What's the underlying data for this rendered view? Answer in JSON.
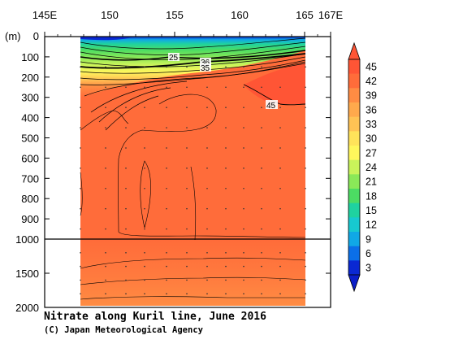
{
  "chart_data": {
    "type": "heatmap",
    "title": "Nitrate along Kuril line, June 2016",
    "credit": "(C) Japan Meteorological Agency",
    "ylabel": "(m)",
    "x_ticks": [
      "145E",
      "150",
      "155",
      "160",
      "165",
      "167E"
    ],
    "x_tick_values": [
      145,
      150,
      155,
      160,
      165,
      167
    ],
    "xlim": [
      145,
      167
    ],
    "y_ticks_upper": [
      "0",
      "100",
      "200",
      "300",
      "400",
      "500",
      "600",
      "700",
      "800",
      "900",
      "1000"
    ],
    "y_ticks_lower": [
      "1500",
      "2000"
    ],
    "ylim": [
      0,
      2000
    ],
    "y_break": 1000,
    "data_x_range": [
      148,
      165
    ],
    "colorbar": {
      "levels": [
        "45",
        "42",
        "39",
        "36",
        "33",
        "30",
        "27",
        "24",
        "21",
        "18",
        "15",
        "12",
        "9",
        "6",
        "3"
      ],
      "colors": [
        "#ff5535",
        "#ff6c3a",
        "#ff8c43",
        "#ffa94c",
        "#ffc354",
        "#ffe35a",
        "#fff75c",
        "#c9f35a",
        "#8ae858",
        "#4cdc63",
        "#1fd2a0",
        "#17c9d0",
        "#10a8e6",
        "#0b6fe8",
        "#0a28d2"
      ]
    },
    "contour_labels": [
      "25",
      "36",
      "35",
      "45"
    ]
  }
}
